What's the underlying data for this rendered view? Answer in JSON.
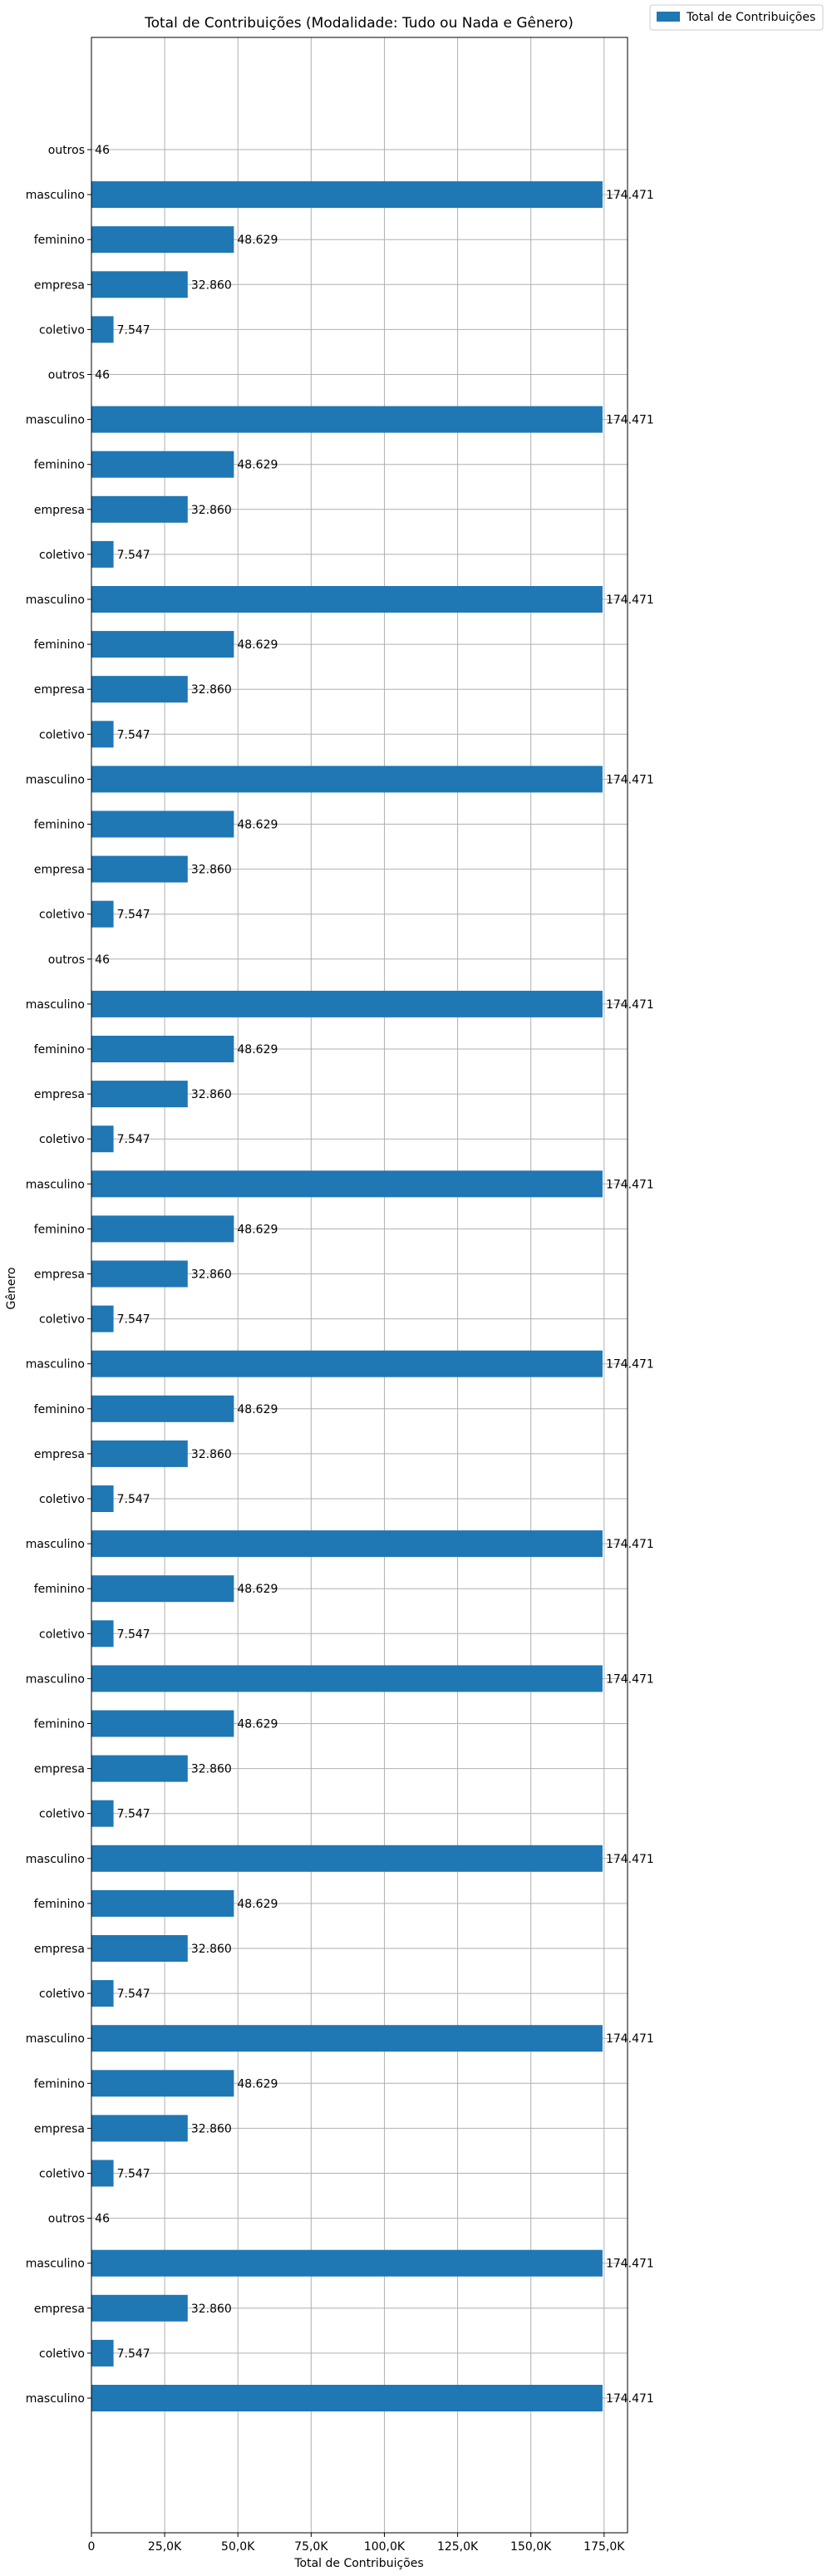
{
  "chart_data": {
    "type": "bar",
    "orientation": "horizontal",
    "title": "Total de Contribuições (Modalidade: Tudo ou Nada e Gênero)",
    "xlabel": "Total de Contribuições",
    "ylabel": "Gênero",
    "xlim": [
      0,
      183000
    ],
    "x_ticks": [
      0,
      25000,
      50000,
      75000,
      100000,
      125000,
      150000,
      175000
    ],
    "x_tick_labels": [
      "0",
      "25,0K",
      "50,0K",
      "75,0K",
      "100,0K",
      "125,0K",
      "150,0K",
      "175,0K"
    ],
    "grid": true,
    "legend_position": "outside-top-right",
    "color": "#1f77b4",
    "series": [
      {
        "name": "Total de Contribuições",
        "categories": [
          "outros",
          "masculino",
          "feminino",
          "empresa",
          "coletivo",
          "outros",
          "masculino",
          "feminino",
          "empresa",
          "coletivo",
          "masculino",
          "feminino",
          "empresa",
          "coletivo",
          "masculino",
          "feminino",
          "empresa",
          "coletivo",
          "outros",
          "masculino",
          "feminino",
          "empresa",
          "coletivo",
          "masculino",
          "feminino",
          "empresa",
          "coletivo",
          "masculino",
          "feminino",
          "empresa",
          "coletivo",
          "masculino",
          "feminino",
          "coletivo",
          "masculino",
          "feminino",
          "empresa",
          "coletivo",
          "masculino",
          "feminino",
          "empresa",
          "coletivo",
          "masculino",
          "feminino",
          "empresa",
          "coletivo",
          "outros",
          "masculino",
          "empresa",
          "coletivo",
          "masculino"
        ],
        "values": [
          46,
          174471,
          48629,
          32860,
          7547,
          46,
          174471,
          48629,
          32860,
          7547,
          174471,
          48629,
          32860,
          7547,
          174471,
          48629,
          32860,
          7547,
          46,
          174471,
          48629,
          32860,
          7547,
          174471,
          48629,
          32860,
          7547,
          174471,
          48629,
          32860,
          7547,
          174471,
          48629,
          7547,
          174471,
          48629,
          32860,
          7547,
          174471,
          48629,
          32860,
          7547,
          174471,
          48629,
          32860,
          7547,
          46,
          174471,
          32860,
          7547,
          174471
        ],
        "labels": [
          "46",
          "174.471",
          "48.629",
          "32.860",
          "7.547",
          "46",
          "174.471",
          "48.629",
          "32.860",
          "7.547",
          "174.471",
          "48.629",
          "32.860",
          "7.547",
          "174.471",
          "48.629",
          "32.860",
          "7.547",
          "46",
          "174.471",
          "48.629",
          "32.860",
          "7.547",
          "174.471",
          "48.629",
          "32.860",
          "7.547",
          "174.471",
          "48.629",
          "32.860",
          "7.547",
          "174.471",
          "48.629",
          "7.547",
          "174.471",
          "48.629",
          "32.860",
          "7.547",
          "174.471",
          "48.629",
          "32.860",
          "7.547",
          "174.471",
          "48.629",
          "32.860",
          "7.547",
          "46",
          "174.471",
          "32.860",
          "7.547",
          "174.471"
        ]
      }
    ]
  }
}
